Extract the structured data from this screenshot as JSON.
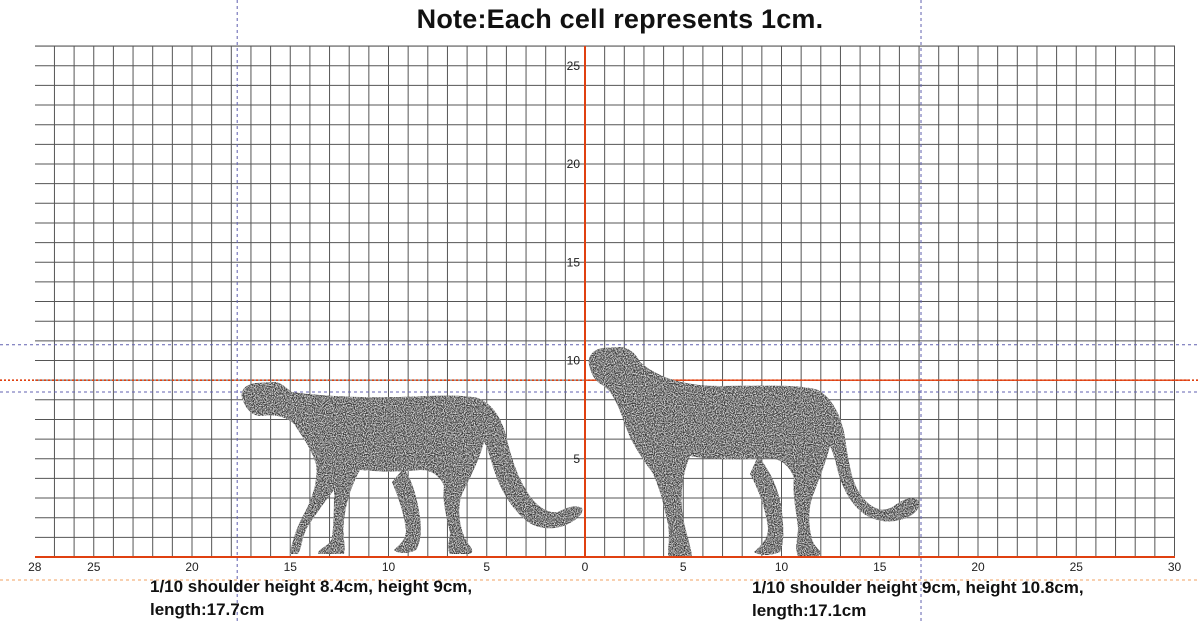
{
  "title": "Note:Each cell represents 1cm.",
  "x_tick_labels": [
    "28",
    "25",
    "20",
    "15",
    "10",
    "5",
    "0",
    "5",
    "10",
    "15",
    "20",
    "25",
    "30"
  ],
  "x_tick_values": [
    -28,
    -25,
    -20,
    -15,
    -10,
    -5,
    0,
    5,
    10,
    15,
    20,
    25,
    30
  ],
  "y_tick_labels": [
    "5",
    "10",
    "15",
    "20",
    "25"
  ],
  "y_tick_values": [
    5,
    10,
    15,
    20,
    25
  ],
  "captions": {
    "left": "1/10  shoulder height 8.4cm, height 9cm, length:17.7cm",
    "right": "1/10  shoulder height 9cm, height 10.8cm, length:17.1cm"
  },
  "colors": {
    "grid": "#555555",
    "axis": "#e04010",
    "guide": "#6060b0",
    "animal": "#3c3c3c"
  },
  "chart_data": {
    "type": "diagram",
    "grid_cell_cm": 1,
    "xlim": [
      -28,
      30
    ],
    "ylim": [
      0,
      26
    ],
    "guides": {
      "vertical_x": [
        -17.7,
        17.1
      ],
      "horizontal_y": [
        10.8,
        9,
        8.4
      ]
    },
    "animals": [
      {
        "side": "left",
        "shoulder_height_cm": 8.4,
        "height_cm": 9,
        "length_cm": 17.7,
        "icon": "cheetah-silhouette"
      },
      {
        "side": "right",
        "shoulder_height_cm": 9,
        "height_cm": 10.8,
        "length_cm": 17.1,
        "icon": "cheetah-silhouette"
      }
    ]
  }
}
